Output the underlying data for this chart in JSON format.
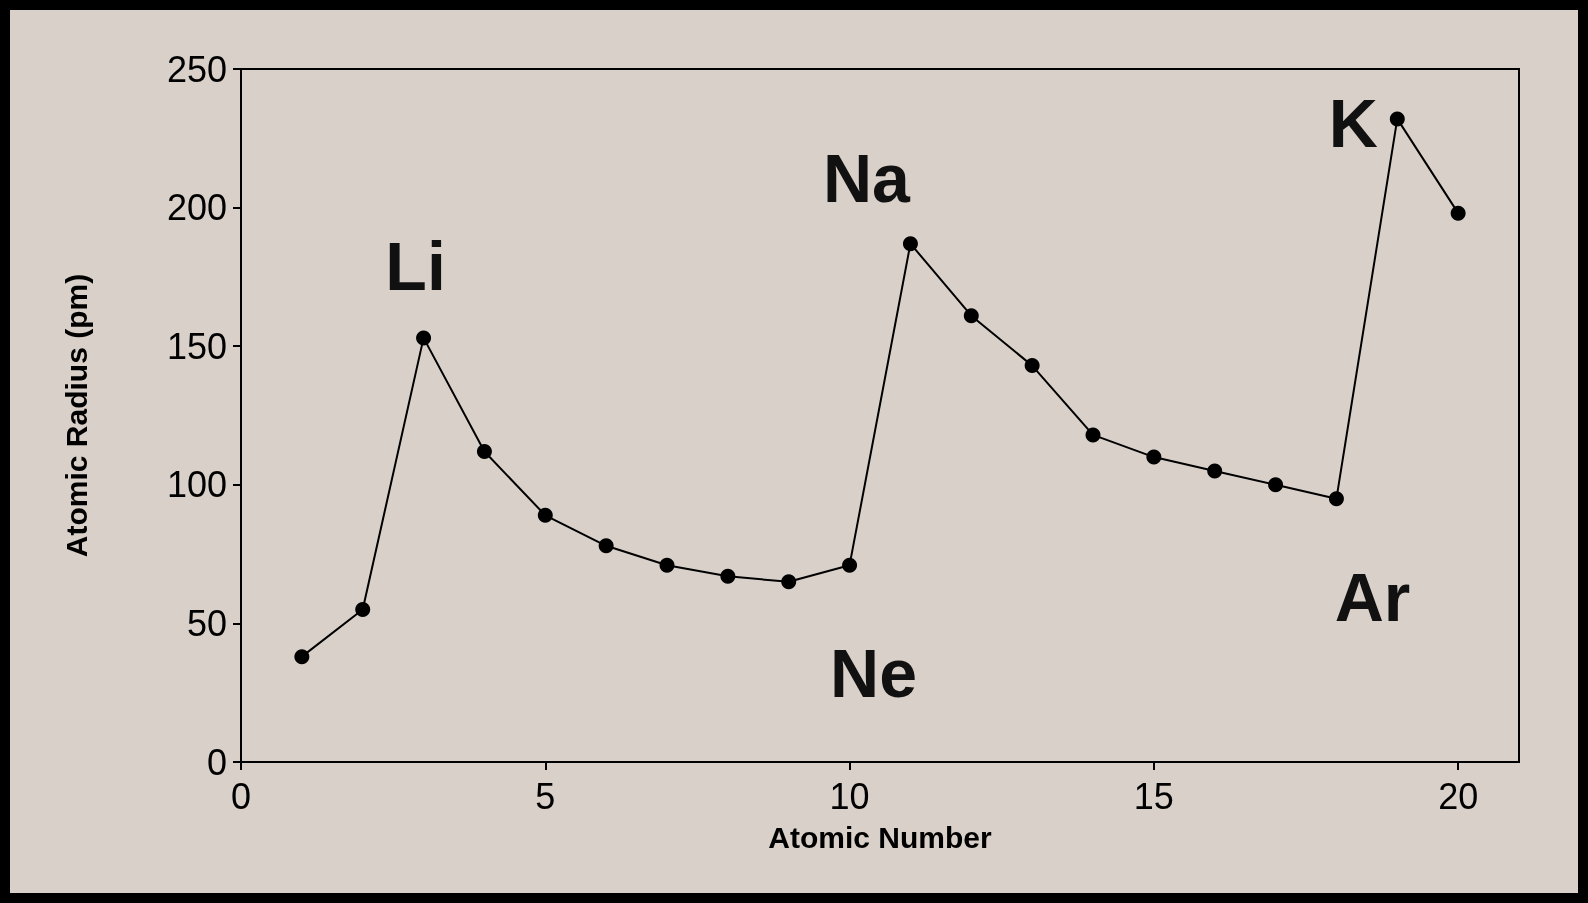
{
  "chart_data": {
    "type": "line",
    "xlabel": "Atomic Number",
    "ylabel": "Atomic Radius (pm)",
    "x": [
      1,
      2,
      3,
      4,
      5,
      6,
      7,
      8,
      9,
      10,
      11,
      12,
      13,
      14,
      15,
      16,
      17,
      18,
      19,
      20
    ],
    "series": [
      {
        "color": "#000000",
        "values": [
          38,
          55,
          153,
          112,
          89,
          78,
          71,
          67,
          65,
          71,
          187,
          161,
          143,
          118,
          110,
          105,
          100,
          95,
          232,
          198
        ]
      }
    ],
    "xlim": [
      0,
      21
    ],
    "xticks": [
      0,
      5,
      10,
      15,
      20
    ],
    "ylim": [
      0,
      250
    ],
    "yticks": [
      0,
      50,
      100,
      150,
      200,
      250
    ],
    "grid": false,
    "marker": "circle",
    "line_style": "solid",
    "annotations": [
      {
        "text": "Li",
        "x": 3,
        "y": 153
      },
      {
        "text": "Na",
        "x": 11,
        "y": 187
      },
      {
        "text": "K",
        "x": 19,
        "y": 232
      },
      {
        "text": "Ne",
        "x": 10,
        "y": 71
      },
      {
        "text": "Ar",
        "x": 18,
        "y": 95
      }
    ]
  }
}
